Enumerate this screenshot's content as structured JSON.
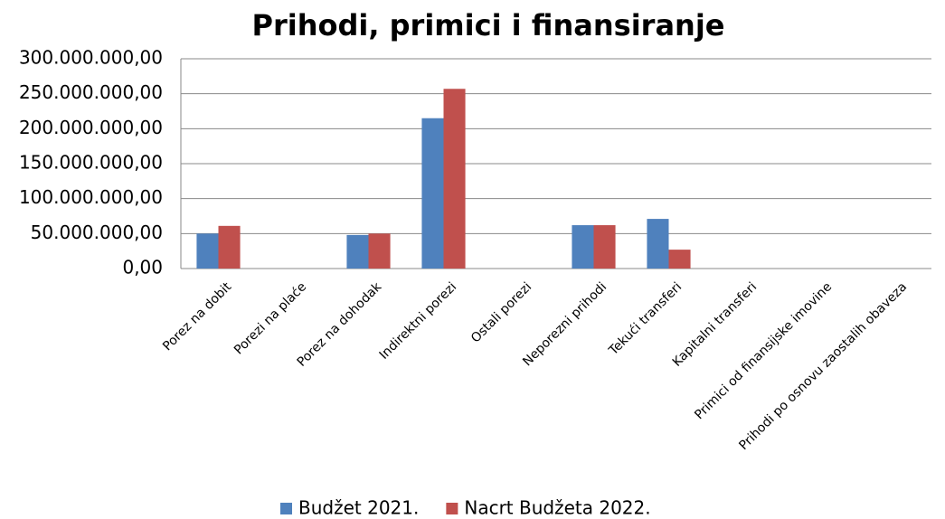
{
  "chart_data": {
    "type": "bar",
    "title": "Prihodi, primici i finansiranje",
    "categories": [
      "Porez na dobit",
      "Porezi na plaće",
      "Porez na dohodak",
      "Indirektni porezi",
      "Ostali porezi",
      "Neporezni prihodi",
      "Tekući transferi",
      "Kapitalni transferi",
      "Primici od finansijske imovine",
      "Prihodi po osnovu zaostalih obaveza"
    ],
    "series": [
      {
        "name": "Budžet 2021.",
        "color": "#4f81bd",
        "values": [
          50000000,
          0,
          48000000,
          215000000,
          0,
          62000000,
          71000000,
          0,
          0,
          0
        ]
      },
      {
        "name": "Nacrt Budžeta 2022.",
        "color": "#c0504d",
        "values": [
          61000000,
          0,
          50000000,
          257000000,
          0,
          62000000,
          27000000,
          0,
          0,
          0
        ]
      }
    ],
    "ylim": [
      0,
      300000000
    ],
    "yticks": [
      {
        "value": 0,
        "label": "0,00"
      },
      {
        "value": 50000000,
        "label": "50.000.000,00"
      },
      {
        "value": 100000000,
        "label": "100.000.000,00"
      },
      {
        "value": 150000000,
        "label": "150.000.000,00"
      },
      {
        "value": 200000000,
        "label": "200.000.000,00"
      },
      {
        "value": 250000000,
        "label": "250.000.000,00"
      },
      {
        "value": 300000000,
        "label": "300.000.000,00"
      }
    ],
    "grid": true,
    "legend": "bottom"
  }
}
